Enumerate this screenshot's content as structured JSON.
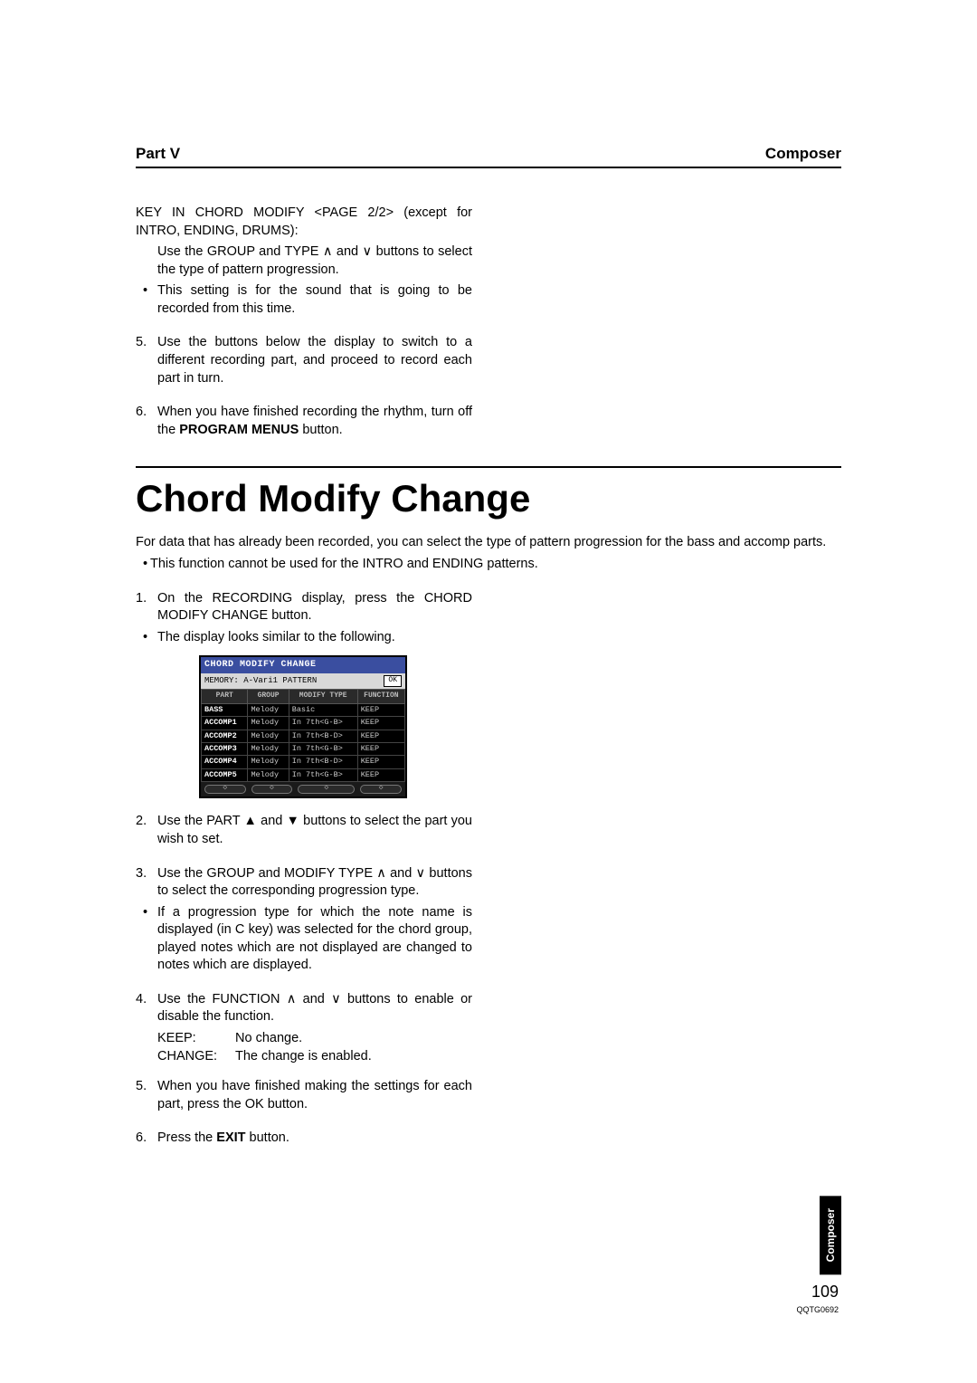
{
  "header": {
    "left": "Part V",
    "right": "Composer"
  },
  "top": {
    "p1": "KEY IN CHORD MODIFY <PAGE 2/2> (except for INTRO, ENDING, DRUMS):",
    "p2": "Use the GROUP and TYPE ∧ and ∨ buttons to select the type of pattern progression.",
    "b1": "This setting is for the sound that is going to be recorded from this time.",
    "s5": "Use the buttons below the display to switch to a different recording part, and proceed to record each part in turn.",
    "s6a": "When you have finished recording the rhythm, turn off the ",
    "s6b": "PROGRAM MENUS",
    "s6c": " button."
  },
  "title": "Chord Modify Change",
  "intro": {
    "p1": "For data that has already been recorded, you can select the type of pattern progression for the bass and accomp parts.",
    "b1": "This function cannot be used for the INTRO and ENDING patterns."
  },
  "steps": {
    "s1": "On the RECORDING display, press the CHORD MODIFY CHANGE button.",
    "s1b": "The display looks similar to the following.",
    "s2": "Use the PART ▲ and ▼ buttons to select the part you wish to set.",
    "s3": "Use the GROUP and MODIFY TYPE ∧ and ∨ buttons to select the corresponding progression type.",
    "s3b": "If a progression type for which the note name is displayed (in C key) was selected for the chord group, played notes which are not displayed are changed to notes which are displayed.",
    "s4": "Use the FUNCTION ∧ and ∨ buttons to enable or disable the function.",
    "keep_label": "KEEP:",
    "keep_val": "No change.",
    "change_label": "CHANGE:",
    "change_val": "The change is enabled.",
    "s5": "When you have finished making the settings for each part, press the OK button.",
    "s6a": "Press the ",
    "s6b": "EXIT",
    "s6c": " button."
  },
  "lcd": {
    "title": "CHORD MODIFY CHANGE",
    "memory": "MEMORY: A-Vari1 PATTERN",
    "ok": "OK",
    "columns": [
      "PART",
      "GROUP",
      "MODIFY TYPE",
      "FUNCTION"
    ],
    "rows": [
      [
        "BASS",
        "Melody",
        "Basic",
        "KEEP"
      ],
      [
        "ACCOMP1",
        "Melody",
        "In 7th<G-B>",
        "KEEP"
      ],
      [
        "ACCOMP2",
        "Melody",
        "In 7th<B-D>",
        "KEEP"
      ],
      [
        "ACCOMP3",
        "Melody",
        "In 7th<G-B>",
        "KEEP"
      ],
      [
        "ACCOMP4",
        "Melody",
        "In 7th<B-D>",
        "KEEP"
      ],
      [
        "ACCOMP5",
        "Melody",
        "In 7th<G-B>",
        "KEEP"
      ]
    ]
  },
  "sidetab": "Composer",
  "page_number": "109",
  "doc_id": "QQTG0692",
  "colors": {
    "text": "#000000",
    "bg": "#ffffff",
    "lcd_title_bg": "#3a4ea0",
    "lcd_bg": "#222222",
    "lcd_header_bg": "#2a2a2a",
    "lcd_cell_bg": "#000000",
    "lcd_border": "#444444"
  }
}
